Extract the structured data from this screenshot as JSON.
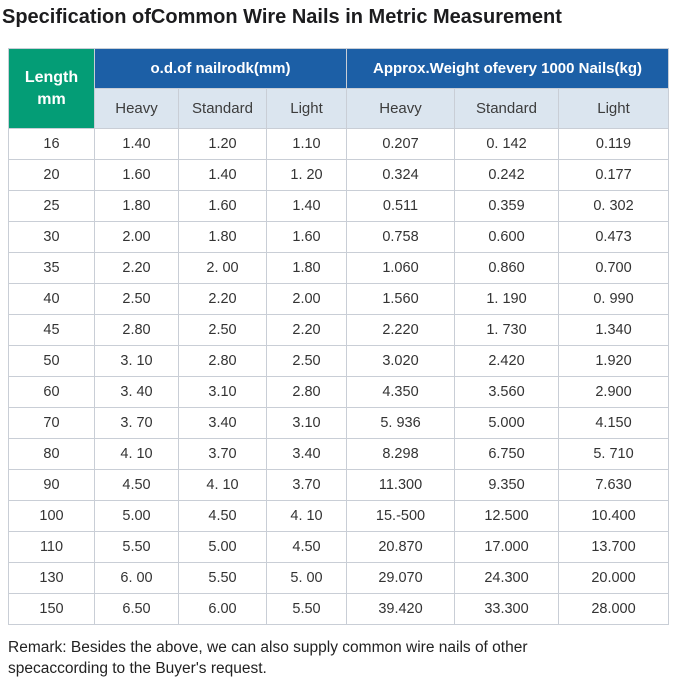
{
  "title": "Specification ofCommon Wire Nails in Metric Measurement",
  "table": {
    "length_header": "Length\nmm",
    "group_headers": [
      "o.d.of nailrodk(mm)",
      "Approx.Weight ofevery 1000 Nails(kg)"
    ],
    "subheaders": [
      "Heavy",
      "Standard",
      "Light",
      "Heavy",
      "Standard",
      "Light"
    ],
    "rows": [
      [
        "16",
        "1.40",
        "1.20",
        "1.10",
        "0.207",
        "0. 142",
        "0.119"
      ],
      [
        "20",
        "1.60",
        "1.40",
        "1. 20",
        "0.324",
        "0.242",
        "0.177"
      ],
      [
        "25",
        "1.80",
        "1.60",
        "1.40",
        "0.511",
        "0.359",
        "0. 302"
      ],
      [
        "30",
        "2.00",
        "1.80",
        "1.60",
        "0.758",
        "0.600",
        "0.473"
      ],
      [
        "35",
        "2.20",
        "2. 00",
        "1.80",
        "1.060",
        "0.860",
        "0.700"
      ],
      [
        "40",
        "2.50",
        "2.20",
        "2.00",
        "1.560",
        "1. 190",
        "0. 990"
      ],
      [
        "45",
        "2.80",
        "2.50",
        "2.20",
        "2.220",
        "1. 730",
        "1.340"
      ],
      [
        "50",
        "3. 10",
        "2.80",
        "2.50",
        "3.020",
        "2.420",
        "1.920"
      ],
      [
        "60",
        "3. 40",
        "3.10",
        "2.80",
        "4.350",
        "3.560",
        "2.900"
      ],
      [
        "70",
        "3. 70",
        "3.40",
        "3.10",
        "5. 936",
        "5.000",
        "4.150"
      ],
      [
        "80",
        "4. 10",
        "3.70",
        "3.40",
        "8.298",
        "6.750",
        "5. 710"
      ],
      [
        "90",
        "4.50",
        "4. 10",
        "3.70",
        "11.300",
        "9.350",
        "7.630"
      ],
      [
        "100",
        "5.00",
        "4.50",
        "4. 10",
        "15.-500",
        "12.500",
        "10.400"
      ],
      [
        "110",
        "5.50",
        "5.00",
        "4.50",
        "20.870",
        "17.000",
        "13.700"
      ],
      [
        "130",
        "6. 00",
        "5.50",
        "5. 00",
        "29.070",
        "24.300",
        "20.000"
      ],
      [
        "150",
        "6.50",
        "6.00",
        "5.50",
        "39.420",
        "33.300",
        "28.000"
      ]
    ]
  },
  "remark": "Remark: Besides the above, we can also supply common wire nails of other\nspecaccording to the Buyer's request.",
  "colors": {
    "green": "#049d76",
    "blue": "#1c5fa6",
    "subheader-bg": "#dbe5ef",
    "subheader-text": "#3c3c3c",
    "border": "#c9ced6",
    "text": "#333333"
  }
}
